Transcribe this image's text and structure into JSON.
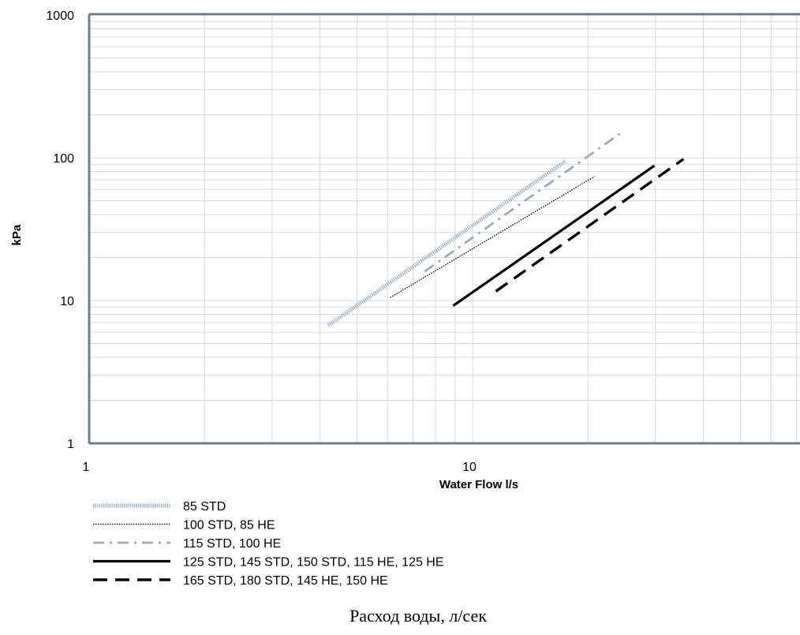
{
  "chart_data": {
    "type": "line",
    "x_scale": "log",
    "y_scale": "log",
    "xlim": [
      1,
      85
    ],
    "ylim": [
      1,
      1000
    ],
    "xlabel": "Water Flow l/s",
    "ylabel": "kPa",
    "x_ticks": [
      {
        "value": 1,
        "label": "1"
      },
      {
        "value": 10,
        "label": "10"
      }
    ],
    "y_ticks": [
      {
        "value": 1,
        "label": "1"
      },
      {
        "value": 10,
        "label": "10"
      },
      {
        "value": 100,
        "label": "100"
      },
      {
        "value": 1000,
        "label": "1000"
      }
    ],
    "grid": true,
    "legend_position": "bottom-left",
    "series": [
      {
        "name": "85 STD",
        "style": "dense-dotted",
        "color": "#9fb4cc",
        "x": [
          4.2,
          17.5
        ],
        "y": [
          6.7,
          95
        ]
      },
      {
        "name": "100 STD, 85 HE",
        "style": "fine-dotted",
        "color": "#111111",
        "x": [
          6.1,
          20.8
        ],
        "y": [
          10.5,
          74
        ]
      },
      {
        "name": "115 STD, 100 HE",
        "style": "dash-dot",
        "color": "#9aabbe",
        "x": [
          7.5,
          24.2
        ],
        "y": [
          16,
          147
        ]
      },
      {
        "name": "125 STD, 145 STD, 150 STD, 115 HE, 125 HE",
        "style": "solid",
        "color": "#000000",
        "x": [
          8.9,
          29.8
        ],
        "y": [
          9.2,
          88
        ]
      },
      {
        "name": "165 STD, 180 STD, 145 HE, 150 HE",
        "style": "long-dash",
        "color": "#000000",
        "x": [
          11.5,
          35.5
        ],
        "y": [
          11.6,
          98
        ]
      }
    ],
    "caption": "Расход воды, л/сек"
  }
}
